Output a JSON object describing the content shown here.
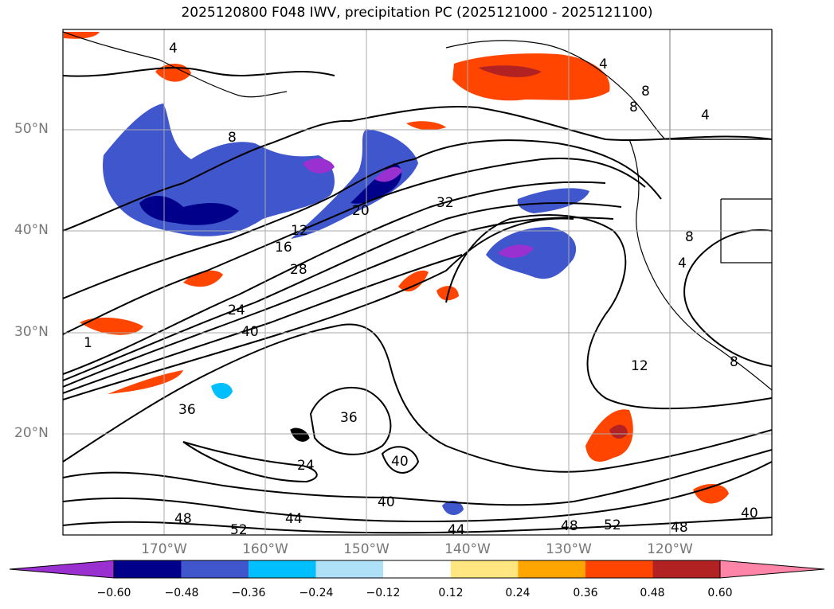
{
  "title": "2025120800 F048 IWV, precipitation PC (2025121000 - 2025121100)",
  "lat_labels": [
    "50°N",
    "40°N",
    "30°N",
    "20°N"
  ],
  "lon_labels": [
    "170°W",
    "160°W",
    "150°W",
    "140°W",
    "130°W",
    "120°W"
  ],
  "colorbar": {
    "ticks": [
      "−0.60",
      "−0.48",
      "−0.36",
      "−0.24",
      "−0.12",
      "0.12",
      "0.24",
      "0.36",
      "0.48",
      "0.60"
    ],
    "colors": [
      "#9b30d0",
      "#00008b",
      "#3f56cc",
      "#00bfff",
      "#aee0f8",
      "#ffffff",
      "#ffe680",
      "#ffa500",
      "#ff4500",
      "#b22222",
      "#ff85a8"
    ]
  },
  "contour_labels": [
    "4",
    "4",
    "4",
    "8",
    "8",
    "8",
    "8",
    "8",
    "12",
    "12",
    "16",
    "20",
    "24",
    "28",
    "32",
    "36",
    "36",
    "40",
    "40",
    "40",
    "40",
    "44",
    "44",
    "48",
    "48",
    "48",
    "52",
    "52",
    "24",
    "1",
    "4"
  ]
}
